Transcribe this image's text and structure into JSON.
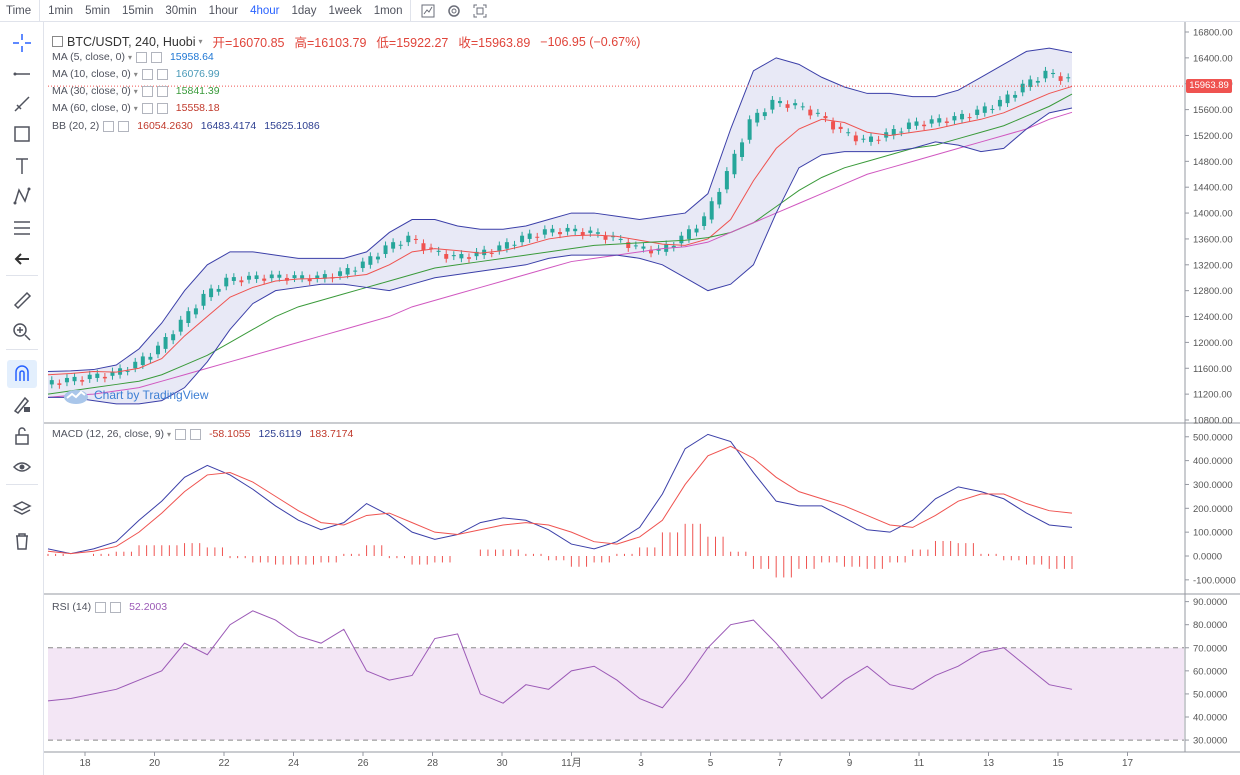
{
  "toolbar": {
    "timeframes": [
      "Time",
      "1min",
      "5min",
      "15min",
      "30min",
      "1hour",
      "4hour",
      "1day",
      "1week",
      "1mon"
    ],
    "active": "4hour",
    "icons": [
      "indicator-chart-icon",
      "settings-gear-icon",
      "fullscreen-icon"
    ]
  },
  "sidebar": {
    "tools": [
      "crosshair-icon",
      "horizontal-line-icon",
      "trend-line-icon",
      "rectangle-icon",
      "text-icon",
      "pattern-icon",
      "fib-retracement-icon",
      "back-arrow-icon",
      "ruler-icon",
      "zoom-in-icon",
      "magnet-icon",
      "pencil-lock-icon",
      "unlock-icon",
      "eye-icon",
      "layers-icon",
      "trash-icon"
    ]
  },
  "main_legend": {
    "symbol": "BTC/USDT, 240, Huobi",
    "open": "开=16070.85",
    "high": "高=16103.79",
    "low": "低=15922.27",
    "close": "收=15963.89",
    "change": "−106.95 (−0.67%)"
  },
  "indicators": [
    {
      "name": "MA (5, close, 0)",
      "value": "15958.64",
      "color": "#1f77d4"
    },
    {
      "name": "MA (10, close, 0)",
      "value": "16076.99",
      "color": "#4a9ab8"
    },
    {
      "name": "MA (30, close, 0)",
      "value": "15841.39",
      "color": "#3a9a3a"
    },
    {
      "name": "MA (60, close, 0)",
      "value": "15558.18",
      "color": "#c0392b"
    },
    {
      "name": "BB (20, 2)",
      "value": "16054.2630",
      "value2": "16483.4174",
      "value3": "15625.1086",
      "color": "#c0392b",
      "color2": "#2c3e90",
      "color3": "#2c3e90"
    }
  ],
  "macd_legend": {
    "name": "MACD (12, 26, close, 9)",
    "v1": "-58.1055",
    "v2": "125.6119",
    "v3": "183.7174"
  },
  "rsi_legend": {
    "name": "RSI (14)",
    "value": "52.2003"
  },
  "watermark": "Chart by TradingView",
  "current_price_label": "15963.89",
  "colors": {
    "up": "#26a69a",
    "down": "#ef5350",
    "bb": "#3b3fa8",
    "bb_fill": "#e8e9f6",
    "ma_pink": "#d058c0",
    "rsi": "#9b59b6",
    "rsi_fill": "#f3e6f5"
  },
  "chart_data": [
    {
      "type": "line",
      "panel": "price",
      "y_ticks": [
        "16800.00",
        "16400.00",
        "16000.00",
        "15600.00",
        "15200.00",
        "14800.00",
        "14400.00",
        "14000.00",
        "13600.00",
        "13200.00",
        "12800.00",
        "12400.00",
        "12000.00",
        "11600.00",
        "11200.00",
        "10800.00"
      ],
      "ylim": [
        10800,
        16800
      ],
      "x_ticks": [
        "18",
        "20",
        "22",
        "24",
        "26",
        "28",
        "30",
        "11月",
        "3",
        "5",
        "7",
        "9",
        "11",
        "13",
        "15",
        "17"
      ],
      "series": [
        {
          "values": [
            11350,
            11400,
            11450,
            11500,
            11650,
            11900,
            12300,
            12700,
            12950,
            12980,
            13000,
            12990,
            12985,
            13050,
            13200,
            13450,
            13600,
            13400,
            13300,
            13350,
            13450,
            13600,
            13700,
            13720,
            13680,
            13600,
            13450,
            13400,
            13600,
            13900,
            14600,
            15400,
            15700,
            15650,
            15500,
            15250,
            15100,
            15200,
            15350,
            15400,
            15450,
            15550,
            15700,
            15950,
            16150,
            16050
          ]
        },
        {
          "values": [
            11500,
            11520,
            11550,
            11540,
            11600,
            11750,
            12100,
            12400,
            12700,
            12850,
            12950,
            12980,
            12990,
            13010,
            13050,
            13200,
            13400,
            13450,
            13420,
            13380,
            13420,
            13500,
            13600,
            13650,
            13660,
            13640,
            13580,
            13520,
            13500,
            13600,
            13900,
            14500,
            15000,
            15300,
            15450,
            15400,
            15250,
            15200,
            15250,
            15300,
            15380,
            15450,
            15550,
            15700,
            15850,
            15958
          ]
        },
        {
          "values": [
            11200,
            11250,
            11300,
            11350,
            11400,
            11500,
            11650,
            11800,
            12000,
            12200,
            12400,
            12550,
            12650,
            12750,
            12850,
            12950,
            13050,
            13150,
            13200,
            13250,
            13300,
            13350,
            13400,
            13450,
            13500,
            13520,
            13540,
            13560,
            13580,
            13620,
            13700,
            13850,
            14100,
            14350,
            14550,
            14700,
            14800,
            14900,
            15000,
            15050,
            15150,
            15250,
            15350,
            15500,
            15650,
            15841
          ]
        },
        {
          "values": [
            11150,
            11180,
            11200,
            11250,
            11300,
            11400,
            11500,
            11600,
            11700,
            11800,
            11900,
            12000,
            12100,
            12200,
            12300,
            12400,
            12550,
            12650,
            12750,
            12850,
            12950,
            13050,
            13150,
            13250,
            13300,
            13350,
            13400,
            13450,
            13480,
            13550,
            13700,
            13850,
            14000,
            14150,
            14300,
            14450,
            14600,
            14700,
            14800,
            14900,
            15000,
            15100,
            15200,
            15300,
            15450,
            15558
          ]
        },
        {
          "values": [
            11550,
            11560,
            11580,
            11650,
            11900,
            12300,
            12800,
            13200,
            13400,
            13400,
            13350,
            13300,
            13300,
            13300,
            13400,
            13700,
            13900,
            13900,
            13800,
            13750,
            13750,
            13800,
            13900,
            14000,
            14000,
            13950,
            13900,
            13950,
            14000,
            14300,
            15300,
            16200,
            16400,
            16300,
            16100,
            15950,
            15850,
            15850,
            15800,
            15800,
            15900,
            16100,
            16300,
            16500,
            16550,
            16483
          ]
        },
        {
          "values": [
            11150,
            11150,
            11100,
            11050,
            11050,
            11100,
            11300,
            11700,
            12200,
            12600,
            12800,
            12850,
            12900,
            12900,
            12850,
            12800,
            12900,
            13000,
            13050,
            13100,
            13150,
            13200,
            13300,
            13350,
            13350,
            13350,
            13300,
            13200,
            13000,
            12800,
            12900,
            13200,
            14000,
            14700,
            14900,
            14950,
            14950,
            14950,
            15000,
            15100,
            15050,
            14950,
            15000,
            15300,
            15550,
            15625
          ]
        }
      ]
    },
    {
      "type": "line",
      "panel": "macd",
      "y_ticks": [
        "500.0000",
        "400.0000",
        "300.0000",
        "200.0000",
        "100.0000",
        "0.0000",
        "-100.0000"
      ],
      "ylim": [
        -130,
        520
      ],
      "series": [
        {
          "values": [
            30,
            10,
            30,
            60,
            150,
            230,
            330,
            380,
            340,
            280,
            210,
            150,
            110,
            140,
            220,
            170,
            100,
            70,
            90,
            140,
            160,
            150,
            110,
            50,
            30,
            60,
            120,
            260,
            450,
            510,
            480,
            350,
            230,
            210,
            210,
            160,
            110,
            100,
            150,
            240,
            290,
            270,
            240,
            180,
            130,
            120
          ]
        },
        {
          "values": [
            20,
            10,
            20,
            40,
            100,
            180,
            270,
            340,
            350,
            310,
            250,
            190,
            140,
            130,
            170,
            180,
            140,
            100,
            90,
            110,
            130,
            140,
            130,
            100,
            60,
            50,
            80,
            150,
            300,
            420,
            460,
            410,
            330,
            270,
            240,
            210,
            170,
            130,
            120,
            170,
            230,
            260,
            260,
            220,
            190,
            180
          ]
        }
      ]
    },
    {
      "type": "line",
      "panel": "rsi",
      "y_ticks": [
        "90.0000",
        "80.0000",
        "70.0000",
        "60.0000",
        "50.0000",
        "40.0000",
        "30.0000"
      ],
      "ylim": [
        27,
        92
      ],
      "series": [
        {
          "values": [
            47,
            48,
            50,
            52,
            56,
            60,
            72,
            67,
            80,
            86,
            82,
            75,
            72,
            78,
            60,
            56,
            58,
            74,
            76,
            50,
            46,
            54,
            52,
            60,
            62,
            56,
            48,
            44,
            56,
            70,
            80,
            82,
            72,
            60,
            48,
            56,
            62,
            54,
            52,
            58,
            62,
            68,
            70,
            62,
            54,
            52
          ]
        }
      ]
    }
  ]
}
